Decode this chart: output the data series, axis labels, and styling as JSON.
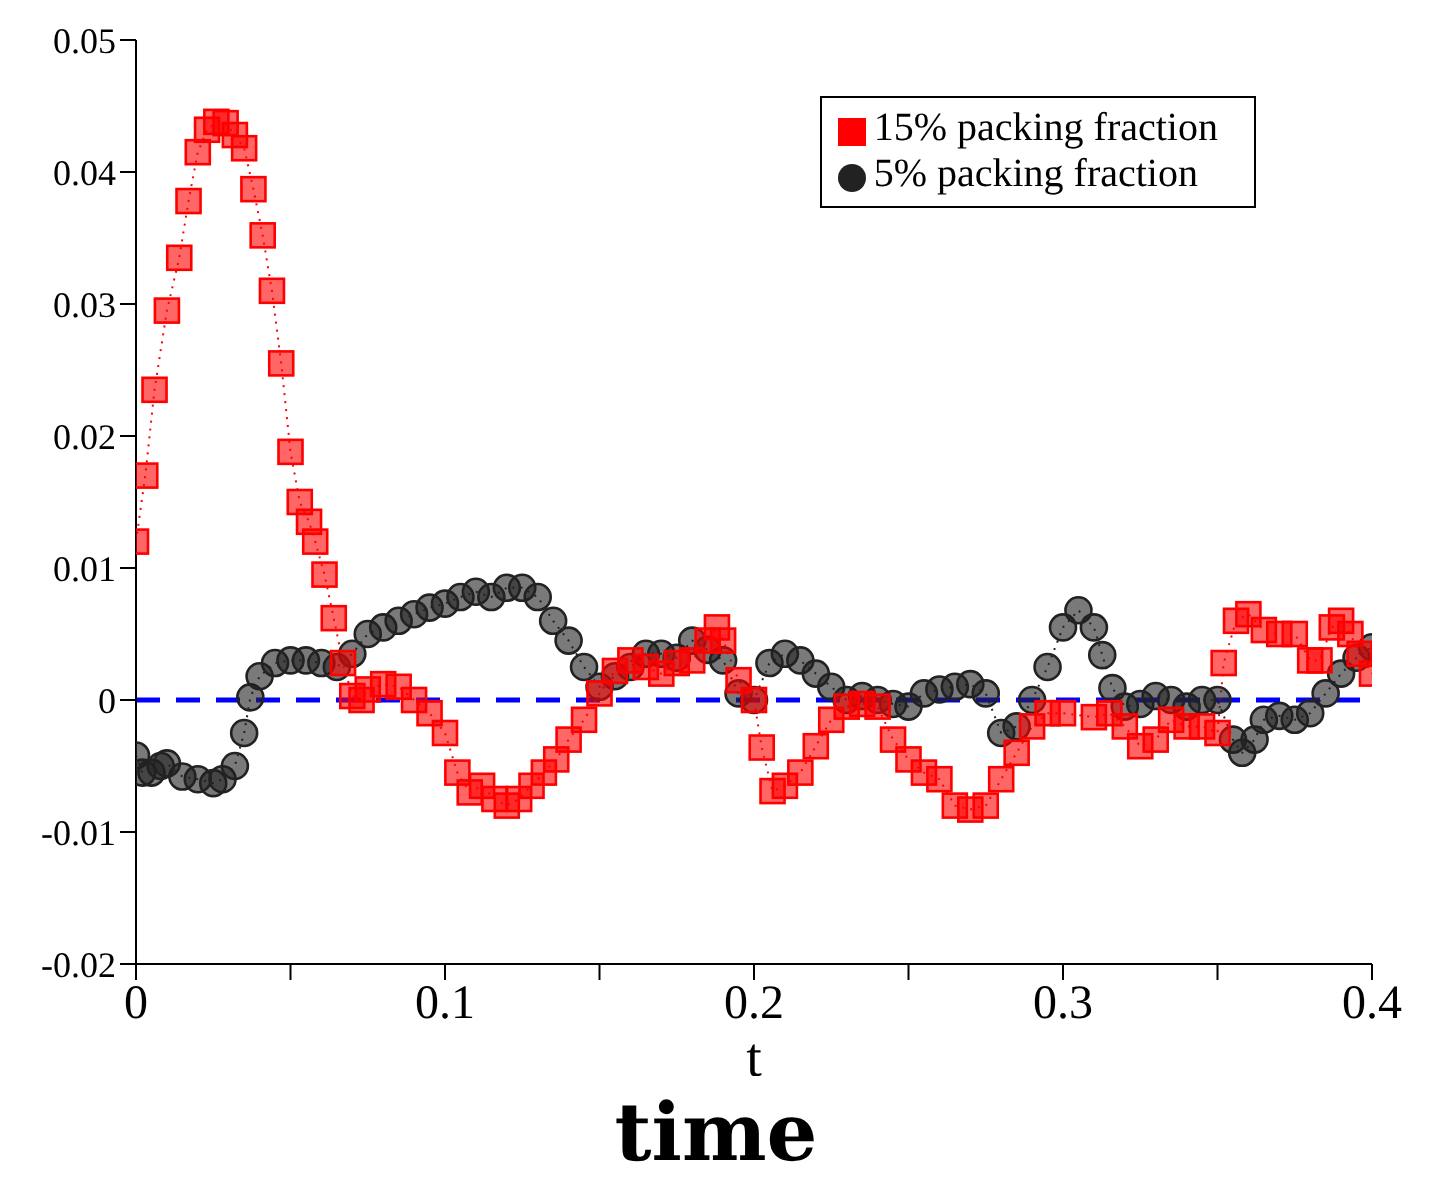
{
  "chart_data": {
    "type": "line",
    "xlabel": "t",
    "annotations": [
      "time"
    ],
    "xlim": [
      0,
      0.4
    ],
    "xticks": [
      0,
      {
        "value": 0.05,
        "label": null
      },
      0.1,
      {
        "value": 0.15,
        "label": null
      },
      0.2,
      {
        "value": 0.25,
        "label": null
      },
      0.3,
      {
        "value": 0.35,
        "label": null
      },
      0.4
    ],
    "ylim": [
      -0.02,
      0.05
    ],
    "yticks": [
      -0.02,
      -0.01,
      0,
      0.01,
      0.02,
      0.03,
      0.04,
      0.05
    ],
    "legend": "top right",
    "line_style": "dotted",
    "ref_lines": [
      {
        "axis": "y",
        "value": 0,
        "color": "#0000ff",
        "line_style": "dashed"
      }
    ],
    "series": [
      {
        "name": "5% packing fraction",
        "color": "#222222",
        "marker": "circle",
        "x": [
          0,
          0.002,
          0.005,
          0.008,
          0.01,
          0.015,
          0.02,
          0.025,
          0.028,
          0.032,
          0.035,
          0.037,
          0.04,
          0.045,
          0.05,
          0.055,
          0.06,
          0.065,
          0.07,
          0.075,
          0.08,
          0.085,
          0.09,
          0.095,
          0.1,
          0.105,
          0.11,
          0.115,
          0.12,
          0.125,
          0.13,
          0.135,
          0.14,
          0.145,
          0.15,
          0.155,
          0.16,
          0.165,
          0.17,
          0.175,
          0.18,
          0.185,
          0.19,
          0.195,
          0.2,
          0.205,
          0.21,
          0.215,
          0.22,
          0.225,
          0.23,
          0.235,
          0.24,
          0.245,
          0.25,
          0.255,
          0.26,
          0.265,
          0.27,
          0.275,
          0.28,
          0.285,
          0.29,
          0.295,
          0.3,
          0.305,
          0.31,
          0.3127,
          0.316,
          0.32,
          0.325,
          0.33,
          0.335,
          0.34,
          0.345,
          0.35,
          0.355,
          0.358,
          0.362,
          0.365,
          0.37,
          0.375,
          0.38,
          0.385,
          0.39,
          0.395,
          0.4
        ],
        "values": [
          -0.0042,
          -0.0055,
          -0.0055,
          -0.005,
          -0.0048,
          -0.0058,
          -0.006,
          -0.0063,
          -0.006,
          -0.005,
          -0.0025,
          0.0002,
          0.0018,
          0.0028,
          0.003,
          0.003,
          0.0028,
          0.0025,
          0.0035,
          0.005,
          0.0055,
          0.006,
          0.0065,
          0.007,
          0.0073,
          0.0078,
          0.0082,
          0.0078,
          0.0085,
          0.0085,
          0.0078,
          0.006,
          0.0045,
          0.0025,
          0.001,
          0.0018,
          0.0025,
          0.0035,
          0.0035,
          0.0032,
          0.0045,
          0.0038,
          0.003,
          0.0005,
          0,
          0.0028,
          0.0035,
          0.003,
          0.002,
          0.001,
          0,
          0.0003,
          0,
          -0.0003,
          -0.0005,
          0.0005,
          0.0008,
          0.001,
          0.0012,
          0.0005,
          -0.0025,
          -0.002,
          0,
          0.0025,
          0.0055,
          0.0068,
          0.0055,
          0.0034,
          0.0009,
          -0.0005,
          -0.0003,
          0.0003,
          0,
          -0.0005,
          0,
          0,
          -0.003,
          -0.004,
          -0.003,
          -0.0015,
          -0.0012,
          -0.0015,
          -0.001,
          0.0005,
          0.002,
          0.0032,
          0.004
        ]
      },
      {
        "name": "15% packing fraction",
        "color": "#ff0000",
        "marker": "square",
        "x": [
          0,
          0.003,
          0.006,
          0.01,
          0.014,
          0.017,
          0.02,
          0.023,
          0.026,
          0.029,
          0.032,
          0.035,
          0.038,
          0.041,
          0.044,
          0.047,
          0.05,
          0.053,
          0.056,
          0.058,
          0.061,
          0.064,
          0.067,
          0.07,
          0.073,
          0.075,
          0.08,
          0.085,
          0.09,
          0.095,
          0.1,
          0.104,
          0.108,
          0.112,
          0.116,
          0.12,
          0.124,
          0.128,
          0.132,
          0.136,
          0.14,
          0.145,
          0.15,
          0.155,
          0.16,
          0.165,
          0.17,
          0.175,
          0.18,
          0.185,
          0.188,
          0.19,
          0.195,
          0.2,
          0.2025,
          0.206,
          0.21,
          0.215,
          0.22,
          0.225,
          0.23,
          0.235,
          0.24,
          0.245,
          0.25,
          0.255,
          0.26,
          0.265,
          0.27,
          0.275,
          0.28,
          0.285,
          0.29,
          0.295,
          0.3,
          0.31,
          0.315,
          0.32,
          0.325,
          0.33,
          0.335,
          0.34,
          0.345,
          0.35,
          0.352,
          0.356,
          0.36,
          0.365,
          0.37,
          0.375,
          0.38,
          0.383,
          0.387,
          0.39,
          0.393,
          0.396,
          0.4
        ],
        "values": [
          0.012,
          0.017,
          0.0235,
          0.0295,
          0.0335,
          0.0378,
          0.0415,
          0.0432,
          0.0438,
          0.0437,
          0.0428,
          0.0418,
          0.0387,
          0.0352,
          0.031,
          0.0255,
          0.0188,
          0.015,
          0.0135,
          0.012,
          0.0095,
          0.0062,
          0.0028,
          0.0003,
          0,
          0.0008,
          0.0012,
          0.001,
          0,
          -0.001,
          -0.0025,
          -0.0055,
          -0.007,
          -0.0065,
          -0.0075,
          -0.008,
          -0.0075,
          -0.0065,
          -0.0055,
          -0.0045,
          -0.003,
          -0.0015,
          0.0005,
          0.0022,
          0.003,
          0.0025,
          0.002,
          0.0028,
          0.003,
          0.0045,
          0.0055,
          0.0045,
          0.0015,
          0,
          -0.0036,
          -0.0069,
          -0.0065,
          -0.0055,
          -0.0035,
          -0.0015,
          -0.0005,
          -0.0003,
          -0.0005,
          -0.003,
          -0.0045,
          -0.0055,
          -0.006,
          -0.008,
          -0.0083,
          -0.008,
          -0.006,
          -0.004,
          -0.002,
          -0.001,
          -0.001,
          -0.0013,
          -0.001,
          -0.002,
          -0.0035,
          -0.003,
          -0.0015,
          -0.002,
          -0.002,
          -0.0025,
          0.0028,
          0.006,
          0.0065,
          0.0053,
          0.005,
          0.005,
          0.003,
          0.003,
          0.0055,
          0.006,
          0.005,
          0.0035,
          0.002
        ]
      }
    ]
  }
}
